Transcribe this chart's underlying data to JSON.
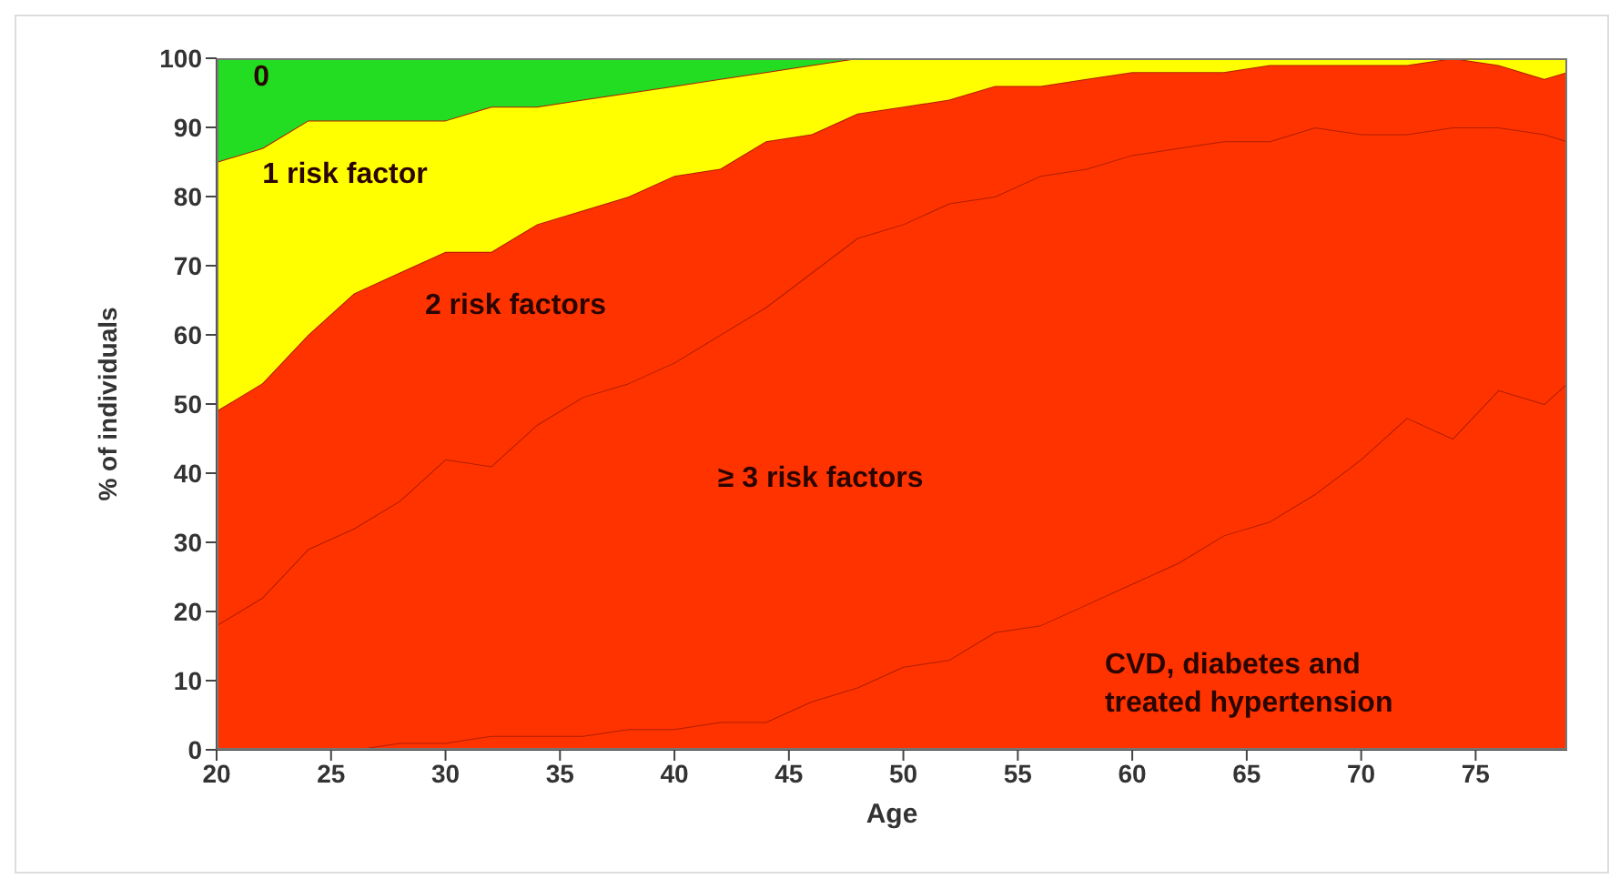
{
  "chart_data": {
    "type": "area",
    "stacked": true,
    "xlabel": "Age",
    "ylabel": "% of individuals",
    "x": [
      20,
      22,
      24,
      26,
      28,
      30,
      32,
      34,
      36,
      38,
      40,
      42,
      44,
      46,
      48,
      50,
      52,
      54,
      56,
      58,
      60,
      62,
      64,
      66,
      68,
      70,
      72,
      74,
      76,
      78,
      79
    ],
    "xlim": [
      20,
      79
    ],
    "xticks": [
      20,
      25,
      30,
      35,
      40,
      45,
      50,
      55,
      60,
      65,
      70,
      75
    ],
    "ylim": [
      0,
      100
    ],
    "yticks": [
      0,
      10,
      20,
      30,
      40,
      50,
      60,
      70,
      80,
      90,
      100
    ],
    "series": [
      {
        "name": "CVD, diabetes and treated hypertension",
        "color": "#ff3300",
        "values": [
          0,
          0,
          0,
          0,
          1,
          1,
          2,
          2,
          2,
          3,
          3,
          4,
          4,
          7,
          9,
          12,
          13,
          17,
          18,
          21,
          24,
          27,
          31,
          33,
          37,
          42,
          48,
          45,
          52,
          50,
          53
        ]
      },
      {
        "name": "≥ 3 risk factors",
        "color": "#ff3300",
        "values": [
          18,
          22,
          29,
          32,
          35,
          41,
          39,
          45,
          49,
          50,
          53,
          56,
          60,
          62,
          65,
          64,
          66,
          63,
          65,
          63,
          62,
          60,
          57,
          55,
          53,
          47,
          41,
          45,
          38,
          39,
          35
        ]
      },
      {
        "name": "2 risk factors",
        "color": "#ff3300",
        "values": [
          31,
          31,
          31,
          34,
          33,
          30,
          31,
          29,
          27,
          27,
          27,
          24,
          24,
          20,
          18,
          17,
          15,
          16,
          13,
          13,
          12,
          11,
          10,
          11,
          9,
          10,
          10,
          10,
          9,
          8,
          10
        ]
      },
      {
        "name": "1 risk factor",
        "color": "#ffff00",
        "values": [
          36,
          34,
          31,
          25,
          22,
          19,
          21,
          17,
          16,
          15,
          13,
          13,
          10,
          10,
          8,
          7,
          6,
          4,
          4,
          3,
          2,
          2,
          2,
          1,
          1,
          1,
          1,
          0,
          1,
          3,
          2
        ]
      },
      {
        "name": "0",
        "color": "#22dd22",
        "values": [
          15,
          13,
          9,
          9,
          9,
          9,
          7,
          7,
          6,
          5,
          4,
          3,
          2,
          1,
          0,
          0,
          0,
          0,
          0,
          0,
          0,
          0,
          0,
          0,
          0,
          0,
          0,
          0,
          0,
          0,
          0
        ]
      }
    ]
  }
}
